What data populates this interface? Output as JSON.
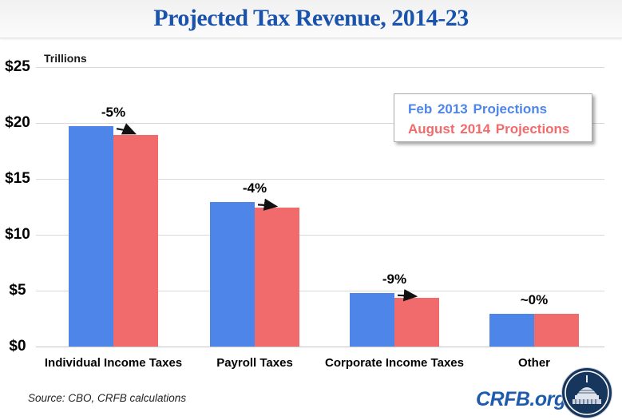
{
  "header": {
    "title": "Projected Tax Revenue, 2014-23"
  },
  "chart_data": {
    "type": "bar",
    "title": "Projected Tax Revenue, 2014-23",
    "ylabel": "Trillions",
    "ylim": [
      0,
      25
    ],
    "y_tick_labels": [
      "$25",
      "$20",
      "$15",
      "$10",
      "$5",
      "$0"
    ],
    "grid": true,
    "legend_position": "upper right",
    "categories": [
      "Individual Income Taxes",
      "Payroll Taxes",
      "Corporate Income Taxes",
      "Other"
    ],
    "series": [
      {
        "name": "Feb 2013 Projections",
        "color": "#4E85E8",
        "values": [
          19.7,
          12.9,
          4.8,
          2.9
        ]
      },
      {
        "name": "August 2014 Projections",
        "color": "#F16B6D",
        "values": [
          18.9,
          12.4,
          4.35,
          2.9
        ]
      }
    ],
    "change_annotations": [
      {
        "category": "Individual Income Taxes",
        "label": "-5%",
        "arrow": true
      },
      {
        "category": "Payroll Taxes",
        "label": "-4%",
        "arrow": true
      },
      {
        "category": "Corporate Income Taxes",
        "label": "-9%",
        "arrow": true
      },
      {
        "category": "Other",
        "label": "~0%",
        "arrow": false
      }
    ]
  },
  "footer": {
    "source": "Source: CBO, CRFB calculations",
    "brand": "CRFB.org",
    "logo": "capitol-dome-icon"
  }
}
